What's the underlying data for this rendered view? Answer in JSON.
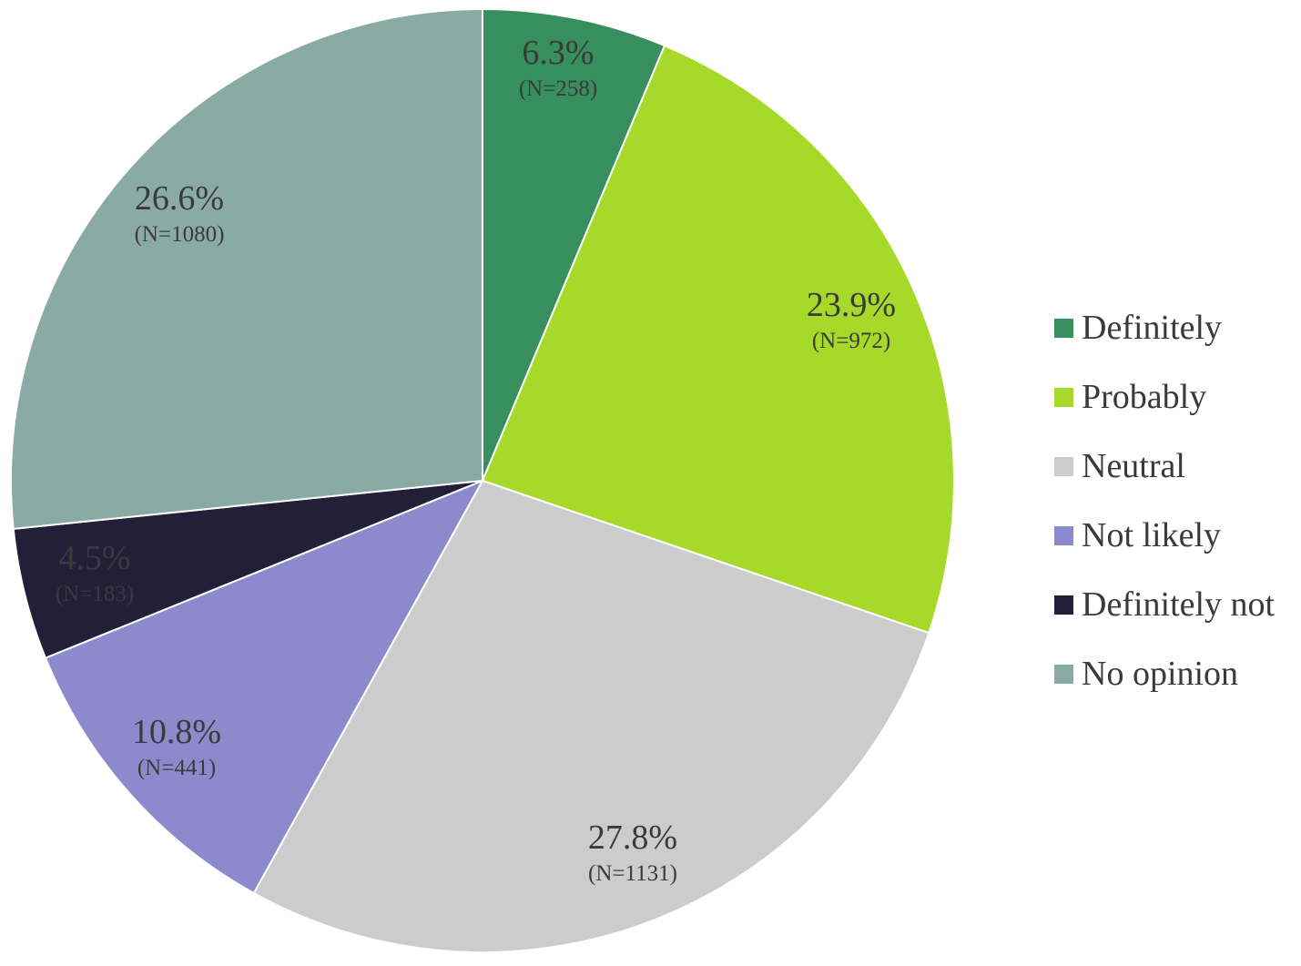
{
  "chart_data": {
    "type": "pie",
    "start_angle": "12 o'clock",
    "direction": "clockwise",
    "legend_position": "right",
    "slices": [
      {
        "label": "Definitely",
        "percent": 6.3,
        "percent_text": "6.3%",
        "n": 258,
        "n_text": "(N=258)",
        "color": "#368f5c"
      },
      {
        "label": "Probably",
        "percent": 23.9,
        "percent_text": "23.9%",
        "n": 972,
        "n_text": "(N=972)",
        "color": "#a6d929"
      },
      {
        "label": "Neutral",
        "percent": 27.8,
        "percent_text": "27.8%",
        "n": 1131,
        "n_text": "(N=1131)",
        "color": "#cccccc"
      },
      {
        "label": "Not likely",
        "percent": 10.8,
        "percent_text": "10.8%",
        "n": 441,
        "n_text": "(N=441)",
        "color": "#8c8acc"
      },
      {
        "label": "Definitely not",
        "percent": 4.5,
        "percent_text": "4.5%",
        "n": 183,
        "n_text": "(N=183)",
        "color": "#231f39"
      },
      {
        "label": "No opinion",
        "percent": 26.6,
        "percent_text": "26.6%",
        "n": 1080,
        "n_text": "(N=1080)",
        "color": "#8aaba4"
      }
    ]
  }
}
